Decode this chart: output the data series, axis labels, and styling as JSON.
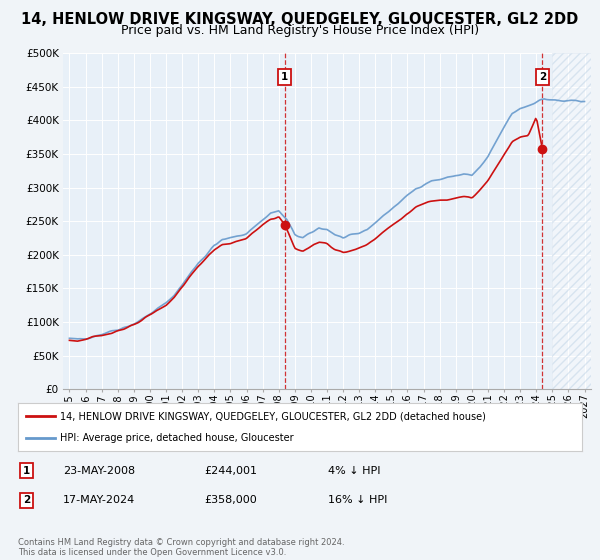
{
  "title": "14, HENLOW DRIVE KINGSWAY, QUEDGELEY, GLOUCESTER, GL2 2DD",
  "subtitle": "Price paid vs. HM Land Registry's House Price Index (HPI)",
  "background_color": "#f0f4f8",
  "plot_bg_color": "#e8f0f8",
  "legend_label_red": "14, HENLOW DRIVE KINGSWAY, QUEDGELEY, GLOUCESTER, GL2 2DD (detached house)",
  "legend_label_blue": "HPI: Average price, detached house, Gloucester",
  "marker1_price": 244001,
  "marker1_date_str": "23-MAY-2008",
  "marker1_pct": "4% ↓ HPI",
  "marker1_x": 2008.38,
  "marker1_y": 244001,
  "marker2_price": 358000,
  "marker2_date_str": "17-MAY-2024",
  "marker2_pct": "16% ↓ HPI",
  "marker2_x": 2024.38,
  "marker2_y": 358000,
  "hatch_start_x": 2025.0,
  "xlim_min": 1994.6,
  "xlim_max": 2027.4,
  "ylim_min": 0,
  "ylim_max": 500000,
  "yticks": [
    0,
    50000,
    100000,
    150000,
    200000,
    250000,
    300000,
    350000,
    400000,
    450000,
    500000
  ],
  "ytick_labels": [
    "£0",
    "£50K",
    "£100K",
    "£150K",
    "£200K",
    "£250K",
    "£300K",
    "£350K",
    "£400K",
    "£450K",
    "£500K"
  ],
  "xtick_years": [
    1995,
    1996,
    1997,
    1998,
    1999,
    2000,
    2001,
    2002,
    2003,
    2004,
    2005,
    2006,
    2007,
    2008,
    2009,
    2010,
    2011,
    2012,
    2013,
    2014,
    2015,
    2016,
    2017,
    2018,
    2019,
    2020,
    2021,
    2022,
    2023,
    2024,
    2025,
    2026,
    2027
  ],
  "title_fontsize": 10.5,
  "subtitle_fontsize": 9,
  "tick_fontsize": 7.5,
  "footer_text": "Contains HM Land Registry data © Crown copyright and database right 2024.\nThis data is licensed under the Open Government Licence v3.0.",
  "red_color": "#cc1111",
  "blue_color": "#6699cc",
  "line_width": 1.2
}
